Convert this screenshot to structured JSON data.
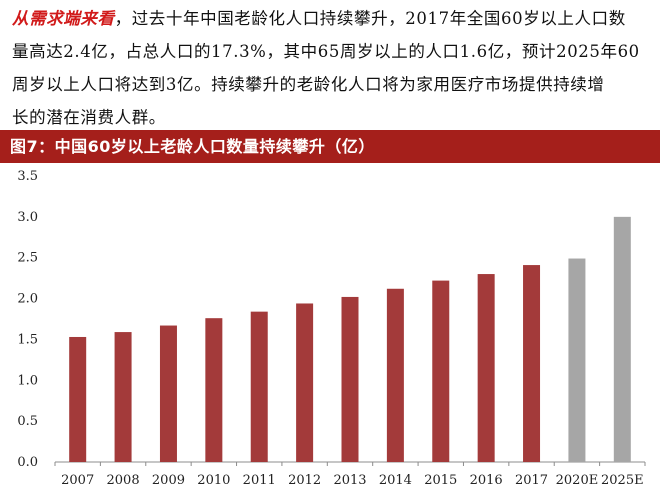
{
  "text": {
    "line1_lead": "从需求端来看",
    "line1_rest": "，过去十年中国老龄化人口持续攀升，2017年全国60岁以上人口数",
    "line2": "量高达2.4亿，占总人口的17.3%，其中65周岁以上的人口1.6亿，预计2025年60",
    "line3": "周岁以上人口将达到3亿。持续攀升的老龄化人口将为家用医疗市场提供持续增",
    "line4": "长的潜在消费人群。"
  },
  "figure": {
    "caption": "图7：中国60岁以上老龄人口数量持续攀升（亿）"
  },
  "chart_data": {
    "type": "bar",
    "categories": [
      "2007",
      "2008",
      "2009",
      "2010",
      "2011",
      "2012",
      "2013",
      "2014",
      "2015",
      "2016",
      "2017",
      "2020E",
      "2025E"
    ],
    "values": [
      1.53,
      1.59,
      1.67,
      1.76,
      1.84,
      1.94,
      2.02,
      2.12,
      2.22,
      2.3,
      2.41,
      2.49,
      3.0
    ],
    "ylim": [
      0,
      3.5
    ],
    "yticks": [
      "0.0",
      "0.5",
      "1.0",
      "1.5",
      "2.0",
      "2.5",
      "3.0",
      "3.5"
    ],
    "bar_color_actual": "#a33a3a",
    "bar_color_forecast": "#a6a6a6",
    "forecast_categories": [
      "2020E",
      "2025E"
    ],
    "grid": false,
    "xlabel": "",
    "ylabel": ""
  }
}
